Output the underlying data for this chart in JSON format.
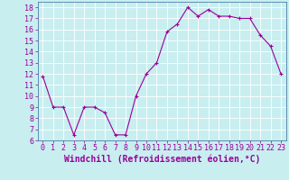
{
  "x": [
    0,
    1,
    2,
    3,
    4,
    5,
    6,
    7,
    8,
    9,
    10,
    11,
    12,
    13,
    14,
    15,
    16,
    17,
    18,
    19,
    20,
    21,
    22,
    23
  ],
  "y": [
    11.8,
    9.0,
    9.0,
    6.5,
    9.0,
    9.0,
    8.5,
    6.5,
    6.5,
    10.0,
    12.0,
    13.0,
    15.8,
    16.5,
    18.0,
    17.2,
    17.8,
    17.2,
    17.2,
    17.0,
    17.0,
    15.5,
    14.5,
    12.0
  ],
  "line_color": "#990099",
  "marker": "+",
  "marker_size": 3,
  "marker_linewidth": 0.8,
  "background_color": "#c8eef0",
  "grid_color": "#ffffff",
  "xlabel": "Windchill (Refroidissement éolien,°C)",
  "xlim": [
    -0.5,
    23.5
  ],
  "ylim": [
    6,
    18.5
  ],
  "yticks": [
    6,
    7,
    8,
    9,
    10,
    11,
    12,
    13,
    14,
    15,
    16,
    17,
    18
  ],
  "xticks": [
    0,
    1,
    2,
    3,
    4,
    5,
    6,
    7,
    8,
    9,
    10,
    11,
    12,
    13,
    14,
    15,
    16,
    17,
    18,
    19,
    20,
    21,
    22,
    23
  ],
  "tick_label_fontsize": 6,
  "xlabel_fontsize": 7,
  "text_color": "#990099",
  "spine_color": "#336699",
  "line_width": 0.8
}
